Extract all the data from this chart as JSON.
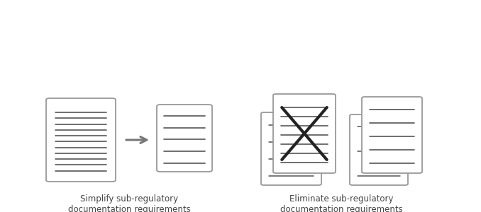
{
  "bg_color": "#ffffff",
  "doc_border_color": "#999999",
  "doc_line_color": "#555555",
  "arrow_color": "#777777",
  "x_color": "#222222",
  "text_color": "#444444",
  "label1": "Simplify sub-regulatory\ndocumentation requirements",
  "label2": "Eliminate sub-regulatory\ndocumentation requirements\nthat are no longer needed",
  "font_size": 8.5,
  "fig_width": 6.78,
  "fig_height": 3.0,
  "dpi": 100
}
